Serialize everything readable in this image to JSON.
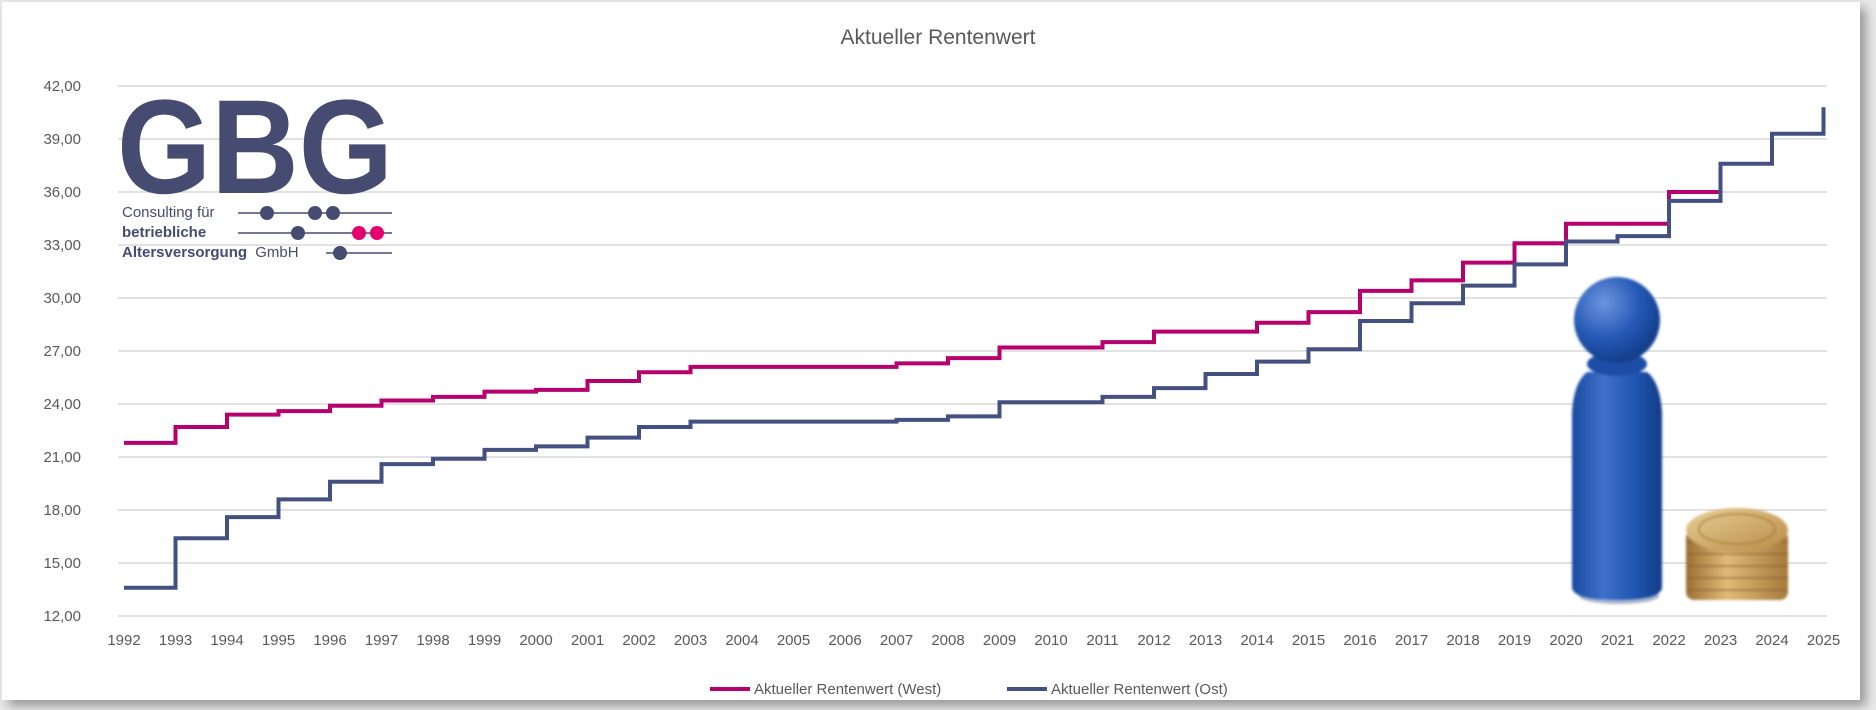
{
  "chart_data": {
    "type": "line",
    "step": true,
    "title": "Aktueller Rentenwert",
    "xlabel": "",
    "ylabel": "",
    "ylim": [
      12,
      42
    ],
    "ytick_labels": [
      "12,00",
      "15,00",
      "18,00",
      "21,00",
      "24,00",
      "27,00",
      "30,00",
      "33,00",
      "36,00",
      "39,00",
      "42,00"
    ],
    "categories": [
      "1992",
      "1993",
      "1994",
      "1995",
      "1996",
      "1997",
      "1998",
      "1999",
      "2000",
      "2001",
      "2002",
      "2003",
      "2004",
      "2005",
      "2006",
      "2007",
      "2008",
      "2009",
      "2010",
      "2011",
      "2012",
      "2013",
      "2014",
      "2015",
      "2016",
      "2017",
      "2018",
      "2019",
      "2020",
      "2021",
      "2022",
      "2023",
      "2024",
      "2025"
    ],
    "series": [
      {
        "name": "Aktueller Rentenwert (West)",
        "color": "#b5006e",
        "values": [
          21.8,
          22.7,
          23.4,
          23.6,
          23.9,
          24.2,
          24.4,
          24.7,
          24.8,
          25.3,
          25.8,
          26.1,
          26.1,
          26.1,
          26.1,
          26.3,
          26.6,
          27.2,
          27.2,
          27.5,
          28.1,
          28.1,
          28.6,
          29.2,
          30.4,
          31.0,
          32.0,
          33.1,
          34.2,
          34.2,
          36.0,
          null,
          null,
          null
        ]
      },
      {
        "name": "Aktueller Rentenwert (Ost)",
        "color": "#44507f",
        "values": [
          13.6,
          16.4,
          17.6,
          18.6,
          19.6,
          20.6,
          20.9,
          21.4,
          21.6,
          22.1,
          22.7,
          23.0,
          23.0,
          23.0,
          23.0,
          23.1,
          23.3,
          24.1,
          24.1,
          24.4,
          24.9,
          25.7,
          26.4,
          27.1,
          28.7,
          29.7,
          30.7,
          31.9,
          33.2,
          33.5,
          35.5,
          37.6,
          39.3,
          40.8
        ]
      }
    ],
    "legend": "bottom"
  },
  "logo": {
    "letters": "GBG",
    "line1": "Consulting für",
    "line2": "betriebliche",
    "line3_bold": "Altersversorgung",
    "line3_rest": "GmbH",
    "navy": "#464b71",
    "pink": "#e5006f"
  },
  "figure": {
    "body_color": "#1f57b4",
    "coin_color": "#c89a52"
  }
}
